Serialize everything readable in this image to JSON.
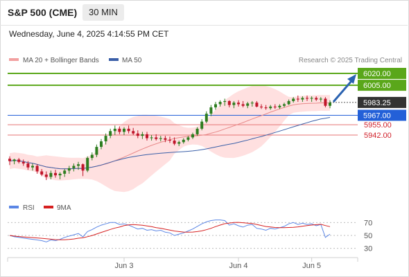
{
  "header": {
    "title": "S&P 500 (CME)",
    "timeframe": "30 MIN",
    "datetime": "Wednesday, June 4, 2025 4:14:55 PM CET"
  },
  "legend": {
    "bollinger": "MA 20 + Bollinger Bands",
    "ma50": "MA 50",
    "credit": "Research © 2025 Trading Central"
  },
  "rsi_legend": {
    "rsi": "RSI",
    "ma": "9MA"
  },
  "colors": {
    "up_candle": "#2e7d1f",
    "down_candle": "#c0152a",
    "resistance": "#5aa71a",
    "support": "#e57373",
    "pivot": "#2360d8",
    "ma50": "#3a5fa8",
    "ma20": "#e88a8a",
    "bollinger_fill": "#ffe0e0",
    "rsi": "#5b86e5",
    "rsi_ma": "#d62020",
    "last_price_bg": "#333333",
    "arrow": "#2a62b0"
  },
  "chart_data": {
    "type": "candlestick",
    "timeframe": "30 MIN",
    "x_ticks": [
      "Jun 3",
      "Jun 4",
      "Jun 5"
    ],
    "ylim": [
      5885,
      6030
    ],
    "last_price": 5983.25,
    "levels": [
      {
        "value": 6020.0,
        "label": "6020.00",
        "kind": "resistance"
      },
      {
        "value": 6005.0,
        "label": "6005.00",
        "kind": "resistance"
      },
      {
        "value": 5967.0,
        "label": "5967.00",
        "kind": "pivot"
      },
      {
        "value": 5955.0,
        "label": "5955.00",
        "kind": "support"
      },
      {
        "value": 5942.0,
        "label": "5942.00",
        "kind": "support"
      }
    ],
    "last_price_label": "5983.25",
    "candles": [
      [
        5912,
        5915,
        5904,
        5909
      ],
      [
        5909,
        5912,
        5905,
        5911
      ],
      [
        5911,
        5913,
        5906,
        5908
      ],
      [
        5908,
        5911,
        5903,
        5906
      ],
      [
        5906,
        5909,
        5898,
        5901
      ],
      [
        5901,
        5906,
        5897,
        5903
      ],
      [
        5903,
        5905,
        5893,
        5896
      ],
      [
        5896,
        5899,
        5890,
        5892
      ],
      [
        5892,
        5896,
        5885,
        5889
      ],
      [
        5889,
        5897,
        5886,
        5894
      ],
      [
        5894,
        5898,
        5888,
        5891
      ],
      [
        5891,
        5895,
        5886,
        5893
      ],
      [
        5893,
        5899,
        5889,
        5897
      ],
      [
        5897,
        5903,
        5893,
        5900
      ],
      [
        5900,
        5906,
        5896,
        5903
      ],
      [
        5903,
        5908,
        5898,
        5905
      ],
      [
        5905,
        5906,
        5890,
        5897
      ],
      [
        5897,
        5915,
        5895,
        5913
      ],
      [
        5913,
        5920,
        5910,
        5917
      ],
      [
        5917,
        5930,
        5914,
        5927
      ],
      [
        5927,
        5937,
        5924,
        5934
      ],
      [
        5934,
        5944,
        5930,
        5941
      ],
      [
        5941,
        5950,
        5938,
        5947
      ],
      [
        5947,
        5954,
        5942,
        5950
      ],
      [
        5950,
        5953,
        5943,
        5946
      ],
      [
        5946,
        5952,
        5942,
        5950
      ],
      [
        5950,
        5954,
        5944,
        5947
      ],
      [
        5947,
        5951,
        5942,
        5944
      ],
      [
        5944,
        5948,
        5938,
        5941
      ],
      [
        5941,
        5946,
        5937,
        5943
      ],
      [
        5943,
        5946,
        5935,
        5938
      ],
      [
        5938,
        5942,
        5935,
        5939
      ],
      [
        5939,
        5943,
        5935,
        5937
      ],
      [
        5937,
        5941,
        5934,
        5938
      ],
      [
        5938,
        5941,
        5933,
        5936
      ],
      [
        5936,
        5940,
        5932,
        5935
      ],
      [
        5935,
        5939,
        5929,
        5931
      ],
      [
        5931,
        5935,
        5928,
        5933
      ],
      [
        5933,
        5938,
        5931,
        5936
      ],
      [
        5936,
        5941,
        5934,
        5939
      ],
      [
        5939,
        5945,
        5937,
        5943
      ],
      [
        5943,
        5952,
        5941,
        5950
      ],
      [
        5950,
        5962,
        5948,
        5959
      ],
      [
        5959,
        5972,
        5957,
        5969
      ],
      [
        5969,
        5980,
        5966,
        5977
      ],
      [
        5977,
        5984,
        5974,
        5981
      ],
      [
        5981,
        5986,
        5978,
        5984
      ],
      [
        5984,
        5988,
        5979,
        5985
      ],
      [
        5985,
        5986,
        5977,
        5980
      ],
      [
        5980,
        5985,
        5976,
        5983
      ],
      [
        5983,
        5986,
        5978,
        5981
      ],
      [
        5981,
        5985,
        5977,
        5979
      ],
      [
        5979,
        5984,
        5976,
        5982
      ],
      [
        5982,
        5985,
        5978,
        5983
      ],
      [
        5983,
        5985,
        5977,
        5978
      ],
      [
        5978,
        5981,
        5975,
        5977
      ],
      [
        5977,
        5980,
        5974,
        5976
      ],
      [
        5976,
        5980,
        5974,
        5978
      ],
      [
        5978,
        5981,
        5975,
        5977
      ],
      [
        5977,
        5981,
        5975,
        5979
      ],
      [
        5979,
        5983,
        5977,
        5981
      ],
      [
        5981,
        5987,
        5980,
        5985
      ],
      [
        5985,
        5990,
        5983,
        5988
      ],
      [
        5988,
        5992,
        5984,
        5987
      ],
      [
        5987,
        5991,
        5984,
        5989
      ],
      [
        5989,
        5992,
        5985,
        5988
      ],
      [
        5988,
        5991,
        5984,
        5989
      ],
      [
        5989,
        5991,
        5985,
        5987
      ],
      [
        5987,
        5990,
        5984,
        5988
      ],
      [
        5988,
        5990,
        5977,
        5979
      ],
      [
        5979,
        5986,
        5976,
        5983
      ]
    ],
    "rsi": [
      50,
      48,
      47,
      46,
      45,
      44,
      43,
      42,
      40,
      43,
      42,
      44,
      47,
      49,
      51,
      53,
      48,
      56,
      59,
      63,
      66,
      68,
      70,
      70,
      67,
      68,
      66,
      63,
      60,
      61,
      58,
      59,
      57,
      58,
      55,
      54,
      50,
      52,
      54,
      57,
      60,
      64,
      68,
      71,
      73,
      74,
      74,
      73,
      66,
      68,
      65,
      63,
      66,
      67,
      61,
      60,
      58,
      61,
      60,
      62,
      64,
      68,
      70,
      67,
      69,
      67,
      68,
      65,
      67,
      47,
      52
    ],
    "rsi_yticks": [
      70,
      50,
      30
    ],
    "rsi_ylim": [
      20,
      80
    ]
  }
}
